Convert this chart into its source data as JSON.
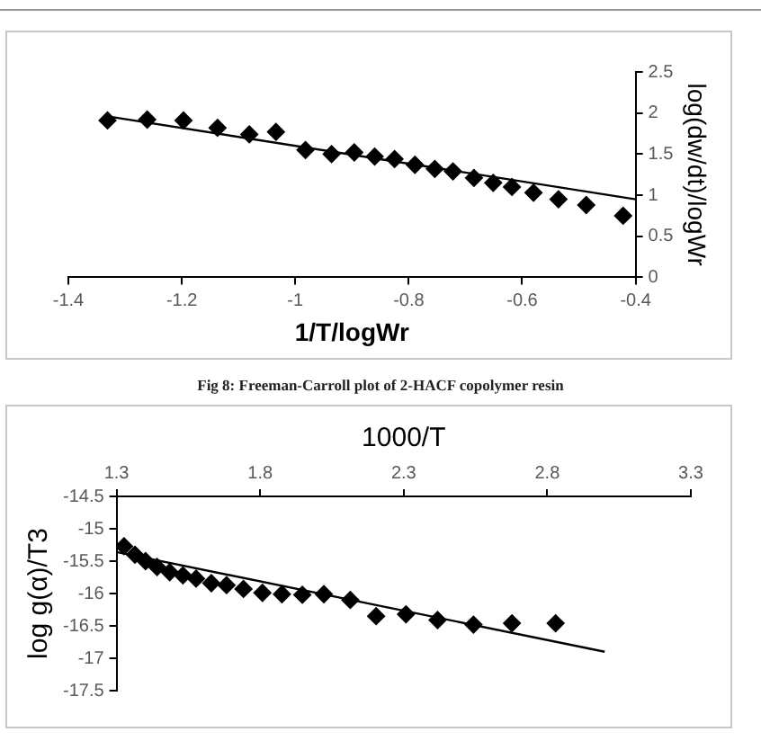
{
  "chart_data": [
    {
      "type": "scatter",
      "xlabel": "1/T/logWr",
      "y2label": "log(dw/dt)/logWr",
      "xlim": [
        -1.4,
        -0.4
      ],
      "xticks": [
        -1.4,
        -1.2,
        -1,
        -0.8,
        -0.6,
        -0.4
      ],
      "y2lim": [
        0,
        2.5
      ],
      "y2ticks": [
        0,
        0.5,
        1,
        1.5,
        2,
        2.5
      ],
      "annotations": [
        "Fig 8: Freeman-Carroll plot of 2-HACF copolymer resin"
      ],
      "series": [
        {
          "axis": "y2",
          "marker": "diamond",
          "color": "#000000",
          "x": [
            -1.331,
            -1.261,
            -1.197,
            -1.137,
            -1.081,
            -1.034,
            -0.982,
            -0.936,
            -0.896,
            -0.86,
            -0.825,
            -0.789,
            -0.754,
            -0.722,
            -0.685,
            -0.651,
            -0.618,
            -0.58,
            -0.536,
            -0.487,
            -0.422
          ],
          "values": [
            1.91,
            1.92,
            1.91,
            1.82,
            1.74,
            1.77,
            1.55,
            1.5,
            1.52,
            1.47,
            1.44,
            1.37,
            1.32,
            1.29,
            1.21,
            1.15,
            1.1,
            1.03,
            0.95,
            0.88,
            0.75
          ]
        },
        {
          "type": "line",
          "axis": "y2",
          "marker": "none",
          "color": "#000000",
          "x": [
            -1.331,
            -0.4
          ],
          "values": [
            1.96,
            0.95
          ]
        }
      ]
    },
    {
      "type": "scatter",
      "xlabel": "1000/T",
      "ylabel": "log g(α)/T3",
      "xlim": [
        1.3,
        3.3
      ],
      "xticks": [
        1.3,
        1.8,
        2.3,
        2.8,
        3.3
      ],
      "ylim": [
        -17.5,
        -14.5
      ],
      "yticks": [
        -17.5,
        -17,
        -16.5,
        -16,
        -15.5,
        -15,
        -14.5
      ],
      "series": [
        {
          "marker": "diamond",
          "color": "#000000",
          "x": [
            1.326,
            1.364,
            1.401,
            1.441,
            1.485,
            1.531,
            1.577,
            1.63,
            1.683,
            1.742,
            1.808,
            1.876,
            1.947,
            2.022,
            2.114,
            2.204,
            2.308,
            2.418,
            2.543,
            2.677,
            2.829
          ],
          "values": [
            -15.27,
            -15.4,
            -15.5,
            -15.59,
            -15.67,
            -15.72,
            -15.77,
            -15.84,
            -15.87,
            -15.93,
            -15.99,
            -16.01,
            -16.02,
            -16.01,
            -16.1,
            -16.35,
            -16.32,
            -16.41,
            -16.48,
            -16.46,
            -16.46
          ]
        },
        {
          "type": "line",
          "marker": "none",
          "color": "#000000",
          "x": [
            1.3,
            3.0
          ],
          "values": [
            -15.36,
            -16.9
          ]
        }
      ]
    }
  ]
}
